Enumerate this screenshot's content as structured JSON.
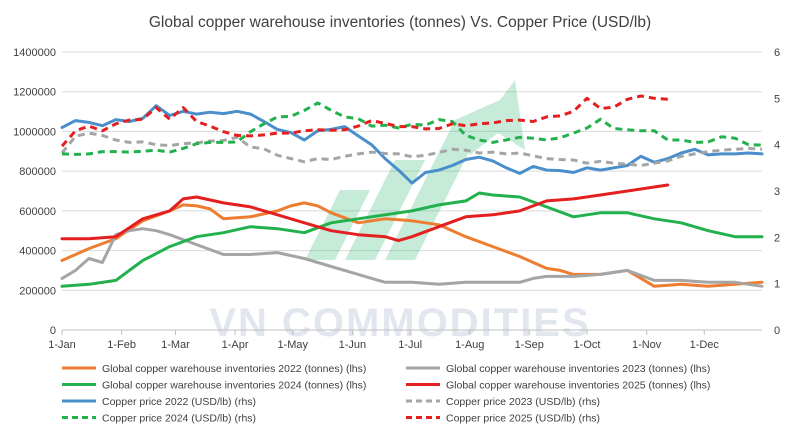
{
  "watermark_text": "VN COMMODITIES",
  "chart_data": {
    "type": "line",
    "title": "Global copper warehouse inventories (tonnes) Vs. Copper Price (USD/lb)",
    "x_axis": {
      "unit": "week",
      "range": [
        0,
        52
      ],
      "tick_labels": [
        "1-Jan",
        "1-Feb",
        "1-Mar",
        "1-Apr",
        "1-May",
        "1-Jun",
        "1-Jul",
        "1-Aug",
        "1-Sep",
        "1-Oct",
        "1-Nov",
        "1-Dec"
      ],
      "tick_positions": [
        0,
        4.43,
        8.43,
        12.86,
        17.14,
        21.57,
        25.86,
        30.29,
        34.71,
        39,
        43.43,
        47.71
      ]
    },
    "y_left": {
      "range": [
        0,
        1400000
      ],
      "ticks": [
        0,
        200000,
        400000,
        600000,
        800000,
        1000000,
        1200000,
        1400000
      ],
      "tick_labels": [
        "0",
        "200000",
        "400000",
        "600000",
        "800000",
        "1000000",
        "1200000",
        "1400000"
      ]
    },
    "y_right": {
      "range": [
        0,
        6
      ],
      "ticks": [
        0,
        1,
        2,
        3,
        4,
        5,
        6
      ],
      "tick_labels": [
        "0",
        "1",
        "2",
        "3",
        "4",
        "5",
        "6"
      ]
    },
    "series": [
      {
        "name": "Global copper warehouse inventories 2022 (tonnes) (lhs)",
        "axis": "left",
        "color": "#ED7D31",
        "dash": "solid",
        "x": [
          0,
          2,
          4,
          6,
          8,
          9,
          10,
          11,
          12,
          14,
          16,
          17,
          18,
          19,
          20,
          22,
          24,
          26,
          28,
          30,
          32,
          34,
          36,
          37,
          38,
          40,
          42,
          44,
          46,
          48,
          50,
          52
        ],
        "y": [
          350000,
          410000,
          460000,
          550000,
          600000,
          630000,
          625000,
          610000,
          560000,
          570000,
          600000,
          625000,
          640000,
          625000,
          590000,
          540000,
          560000,
          550000,
          530000,
          470000,
          420000,
          370000,
          310000,
          300000,
          280000,
          280000,
          300000,
          220000,
          230000,
          220000,
          230000,
          240000
        ]
      },
      {
        "name": "Global copper warehouse inventories 2023 (tonnes) (lhs)",
        "axis": "left",
        "color": "#A5A5A5",
        "dash": "solid",
        "x": [
          0,
          1,
          2,
          3,
          4,
          5,
          6,
          7,
          8,
          10,
          12,
          14,
          16,
          18,
          20,
          22,
          24,
          26,
          28,
          30,
          32,
          34,
          35,
          36,
          38,
          40,
          42,
          44,
          46,
          48,
          50,
          52
        ],
        "y": [
          260000,
          300000,
          360000,
          340000,
          480000,
          500000,
          510000,
          500000,
          480000,
          430000,
          380000,
          380000,
          390000,
          360000,
          320000,
          280000,
          240000,
          240000,
          230000,
          240000,
          240000,
          240000,
          260000,
          270000,
          270000,
          280000,
          300000,
          250000,
          250000,
          240000,
          240000,
          220000
        ]
      },
      {
        "name": "Global copper warehouse inventories 2024 (tonnes) (lhs)",
        "axis": "left",
        "color": "#22B14C",
        "dash": "solid",
        "x": [
          0,
          2,
          4,
          6,
          8,
          10,
          12,
          14,
          16,
          18,
          20,
          22,
          24,
          26,
          28,
          30,
          31,
          32,
          34,
          36,
          38,
          40,
          42,
          44,
          46,
          48,
          50,
          52
        ],
        "y": [
          220000,
          230000,
          250000,
          350000,
          420000,
          470000,
          490000,
          520000,
          510000,
          490000,
          540000,
          560000,
          580000,
          600000,
          630000,
          650000,
          690000,
          680000,
          670000,
          620000,
          570000,
          590000,
          590000,
          560000,
          540000,
          500000,
          470000,
          470000
        ]
      },
      {
        "name": "Global copper warehouse inventories 2025 (tonnes) (lhs)",
        "axis": "left",
        "color": "#E41F1F",
        "dash": "solid",
        "x": [
          0,
          2,
          4,
          6,
          8,
          9,
          10,
          12,
          14,
          16,
          18,
          20,
          22,
          24,
          25,
          26,
          28,
          30,
          32,
          34,
          36,
          38,
          40,
          42,
          44,
          45
        ],
        "y": [
          460000,
          460000,
          470000,
          560000,
          600000,
          660000,
          670000,
          640000,
          620000,
          580000,
          540000,
          500000,
          480000,
          470000,
          450000,
          470000,
          520000,
          570000,
          580000,
          600000,
          650000,
          660000,
          680000,
          700000,
          720000,
          730000
        ]
      },
      {
        "name": "Copper price 2022 (USD/lb) (rhs)",
        "axis": "right",
        "color": "#4A8FCB",
        "dash": "solid",
        "x": [
          0,
          1,
          2,
          3,
          4,
          5,
          6,
          7,
          8,
          9,
          10,
          11,
          12,
          13,
          14,
          15,
          16,
          17,
          18,
          19,
          20,
          21,
          22,
          23,
          24,
          25,
          26,
          27,
          28,
          29,
          30,
          31,
          32,
          33,
          34,
          35,
          36,
          37,
          38,
          39,
          40,
          41,
          42,
          43,
          44,
          45,
          46,
          47,
          48,
          49,
          50,
          51,
          52
        ],
        "y": [
          4.37,
          4.52,
          4.48,
          4.41,
          4.54,
          4.5,
          4.57,
          4.84,
          4.63,
          4.72,
          4.66,
          4.7,
          4.67,
          4.72,
          4.66,
          4.5,
          4.33,
          4.26,
          4.1,
          4.3,
          4.33,
          4.39,
          4.19,
          4.0,
          3.7,
          3.45,
          3.17,
          3.4,
          3.45,
          3.55,
          3.68,
          3.73,
          3.65,
          3.5,
          3.38,
          3.53,
          3.45,
          3.44,
          3.4,
          3.5,
          3.45,
          3.5,
          3.55,
          3.75,
          3.62,
          3.7,
          3.82,
          3.9,
          3.78,
          3.8,
          3.8,
          3.82,
          3.8
        ]
      },
      {
        "name": "Copper price 2023 (USD/lb) (rhs)",
        "axis": "right",
        "color": "#A5A5A5",
        "dash": "dashed",
        "x": [
          0,
          1,
          2,
          3,
          4,
          5,
          6,
          7,
          8,
          9,
          10,
          11,
          12,
          13,
          14,
          15,
          16,
          17,
          18,
          19,
          20,
          21,
          22,
          23,
          24,
          25,
          26,
          27,
          28,
          29,
          30,
          31,
          32,
          33,
          34,
          35,
          36,
          37,
          38,
          39,
          40,
          41,
          42,
          43,
          44,
          45,
          46,
          47,
          48,
          49,
          50,
          51,
          52
        ],
        "y": [
          3.82,
          4.18,
          4.25,
          4.2,
          4.1,
          4.05,
          4.06,
          4.0,
          3.98,
          4.02,
          4.04,
          4.08,
          4.09,
          4.16,
          3.95,
          3.91,
          3.77,
          3.7,
          3.63,
          3.7,
          3.68,
          3.75,
          3.8,
          3.84,
          3.81,
          3.8,
          3.74,
          3.77,
          3.83,
          3.9,
          3.88,
          3.82,
          3.84,
          3.8,
          3.82,
          3.76,
          3.7,
          3.68,
          3.67,
          3.6,
          3.64,
          3.6,
          3.58,
          3.55,
          3.6,
          3.65,
          3.75,
          3.8,
          3.85,
          3.88,
          3.9,
          3.92,
          3.9
        ]
      },
      {
        "name": "Copper price 2024 (USD/lb) (rhs)",
        "axis": "right",
        "color": "#22B14C",
        "dash": "dashed",
        "x": [
          0,
          1,
          2,
          3,
          4,
          5,
          6,
          7,
          8,
          9,
          10,
          11,
          12,
          13,
          14,
          15,
          16,
          17,
          18,
          19,
          20,
          21,
          22,
          23,
          24,
          25,
          26,
          27,
          28,
          29,
          30,
          31,
          32,
          33,
          34,
          35,
          36,
          37,
          38,
          39,
          40,
          41,
          42,
          43,
          44,
          45,
          46,
          47,
          48,
          49,
          50,
          51,
          52
        ],
        "y": [
          3.8,
          3.79,
          3.8,
          3.85,
          3.85,
          3.84,
          3.86,
          3.88,
          3.84,
          3.92,
          4.02,
          4.05,
          4.05,
          4.06,
          4.28,
          4.45,
          4.6,
          4.61,
          4.74,
          4.9,
          4.74,
          4.6,
          4.56,
          4.4,
          4.42,
          4.36,
          4.44,
          4.42,
          4.54,
          4.5,
          4.2,
          4.1,
          4.05,
          4.1,
          4.16,
          4.14,
          4.1,
          4.15,
          4.25,
          4.36,
          4.55,
          4.35,
          4.32,
          4.3,
          4.3,
          4.1,
          4.1,
          4.05,
          4.06,
          4.17,
          4.14,
          4.0,
          3.99
        ]
      },
      {
        "name": "Copper price 2025 (USD/lb) (rhs)",
        "axis": "right",
        "color": "#E41F1F",
        "dash": "dashed",
        "x": [
          0,
          1,
          2,
          3,
          4,
          5,
          6,
          7,
          8,
          9,
          10,
          11,
          12,
          13,
          14,
          15,
          16,
          17,
          18,
          19,
          20,
          21,
          22,
          23,
          24,
          25,
          26,
          27,
          28,
          29,
          30,
          31,
          32,
          33,
          34,
          35,
          36,
          37,
          38,
          39,
          40,
          41,
          42,
          43,
          44,
          45
        ],
        "y": [
          3.97,
          4.3,
          4.4,
          4.3,
          4.45,
          4.53,
          4.55,
          4.8,
          4.55,
          4.8,
          4.5,
          4.4,
          4.28,
          4.2,
          4.19,
          4.21,
          4.25,
          4.25,
          4.3,
          4.32,
          4.31,
          4.32,
          4.4,
          4.52,
          4.46,
          4.39,
          4.39,
          4.34,
          4.35,
          4.45,
          4.41,
          4.45,
          4.47,
          4.52,
          4.53,
          4.5,
          4.6,
          4.62,
          4.72,
          5.0,
          4.78,
          4.81,
          4.98,
          5.05,
          5.0,
          4.98
        ]
      }
    ],
    "legend_position": "bottom",
    "gridlines": "horizontal"
  }
}
